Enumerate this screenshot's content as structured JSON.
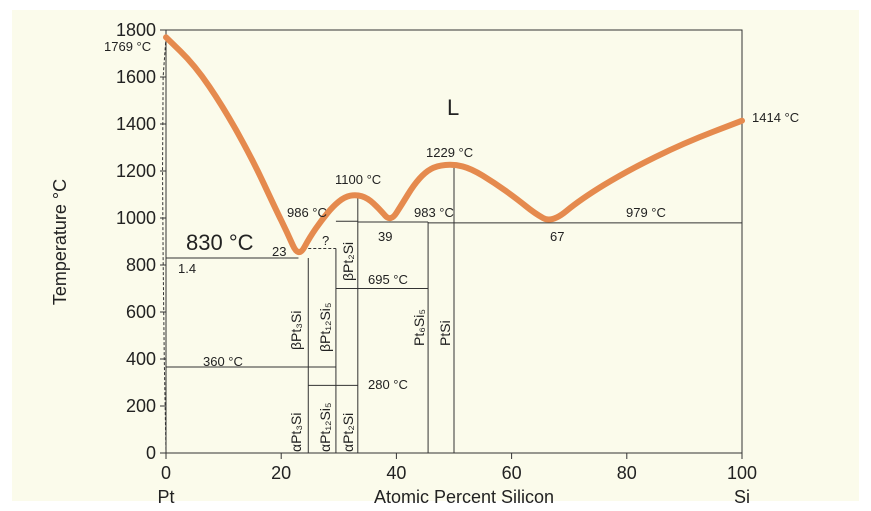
{
  "chart_data": {
    "type": "phase-diagram",
    "xlabel": "Atomic Percent Silicon",
    "ylabel": "Temperature °C",
    "xlim": [
      0,
      100
    ],
    "ylim": [
      0,
      1800
    ],
    "x_ticks": [
      "0",
      "20",
      "40",
      "60",
      "80",
      "100"
    ],
    "y_ticks": [
      "0",
      "200",
      "400",
      "600",
      "800",
      "1000",
      "1200",
      "1400",
      "1600",
      "1800"
    ],
    "x_end_labels": {
      "left": "Pt",
      "right": "Si"
    },
    "liquidus_color": "#e58a4e",
    "liquidus": [
      [
        0,
        1769
      ],
      [
        5,
        1650
      ],
      [
        10,
        1470
      ],
      [
        15,
        1250
      ],
      [
        19,
        1040
      ],
      [
        21,
        940
      ],
      [
        23,
        830
      ],
      [
        25,
        920
      ],
      [
        27,
        990
      ],
      [
        29,
        1050
      ],
      [
        31,
        1090
      ],
      [
        33,
        1100
      ],
      [
        35,
        1085
      ],
      [
        37,
        1040
      ],
      [
        39,
        983
      ],
      [
        41,
        1060
      ],
      [
        43,
        1140
      ],
      [
        45,
        1195
      ],
      [
        47,
        1222
      ],
      [
        50,
        1229
      ],
      [
        53,
        1210
      ],
      [
        57,
        1150
      ],
      [
        61,
        1080
      ],
      [
        64,
        1020
      ],
      [
        67,
        979
      ],
      [
        72,
        1080
      ],
      [
        80,
        1200
      ],
      [
        90,
        1320
      ],
      [
        100,
        1414
      ]
    ],
    "annotations": {
      "liquid": "L",
      "pt_melt": "1769 °C",
      "si_melt": "1414 °C",
      "eutectic_830": "830 °C",
      "comp_23": "23",
      "comp_1_4": "1.4",
      "peritectic_986": "986 °C",
      "question": "?",
      "max_1100": "1100 °C",
      "max_1229": "1229 °C",
      "eutectic_983": "983 °C",
      "comp_39": "39",
      "eutectic_979": "979 °C",
      "comp_67": "67",
      "trans_695": "695 °C",
      "trans_360": "360 °C",
      "trans_280": "280 °C"
    },
    "phases": {
      "bPt3Si": "βPt₃Si",
      "bPt12Si5": "βPt₁₂Si₅",
      "bPt2Si": "βPt₂Si",
      "aPt3Si": "αPt₃Si",
      "aPt12Si5": "αPt₁₂Si₅",
      "aPt2Si": "αPt₂Si",
      "Pt6Si5": "Pt₆Si₅",
      "PtSi": "PtSi"
    }
  }
}
